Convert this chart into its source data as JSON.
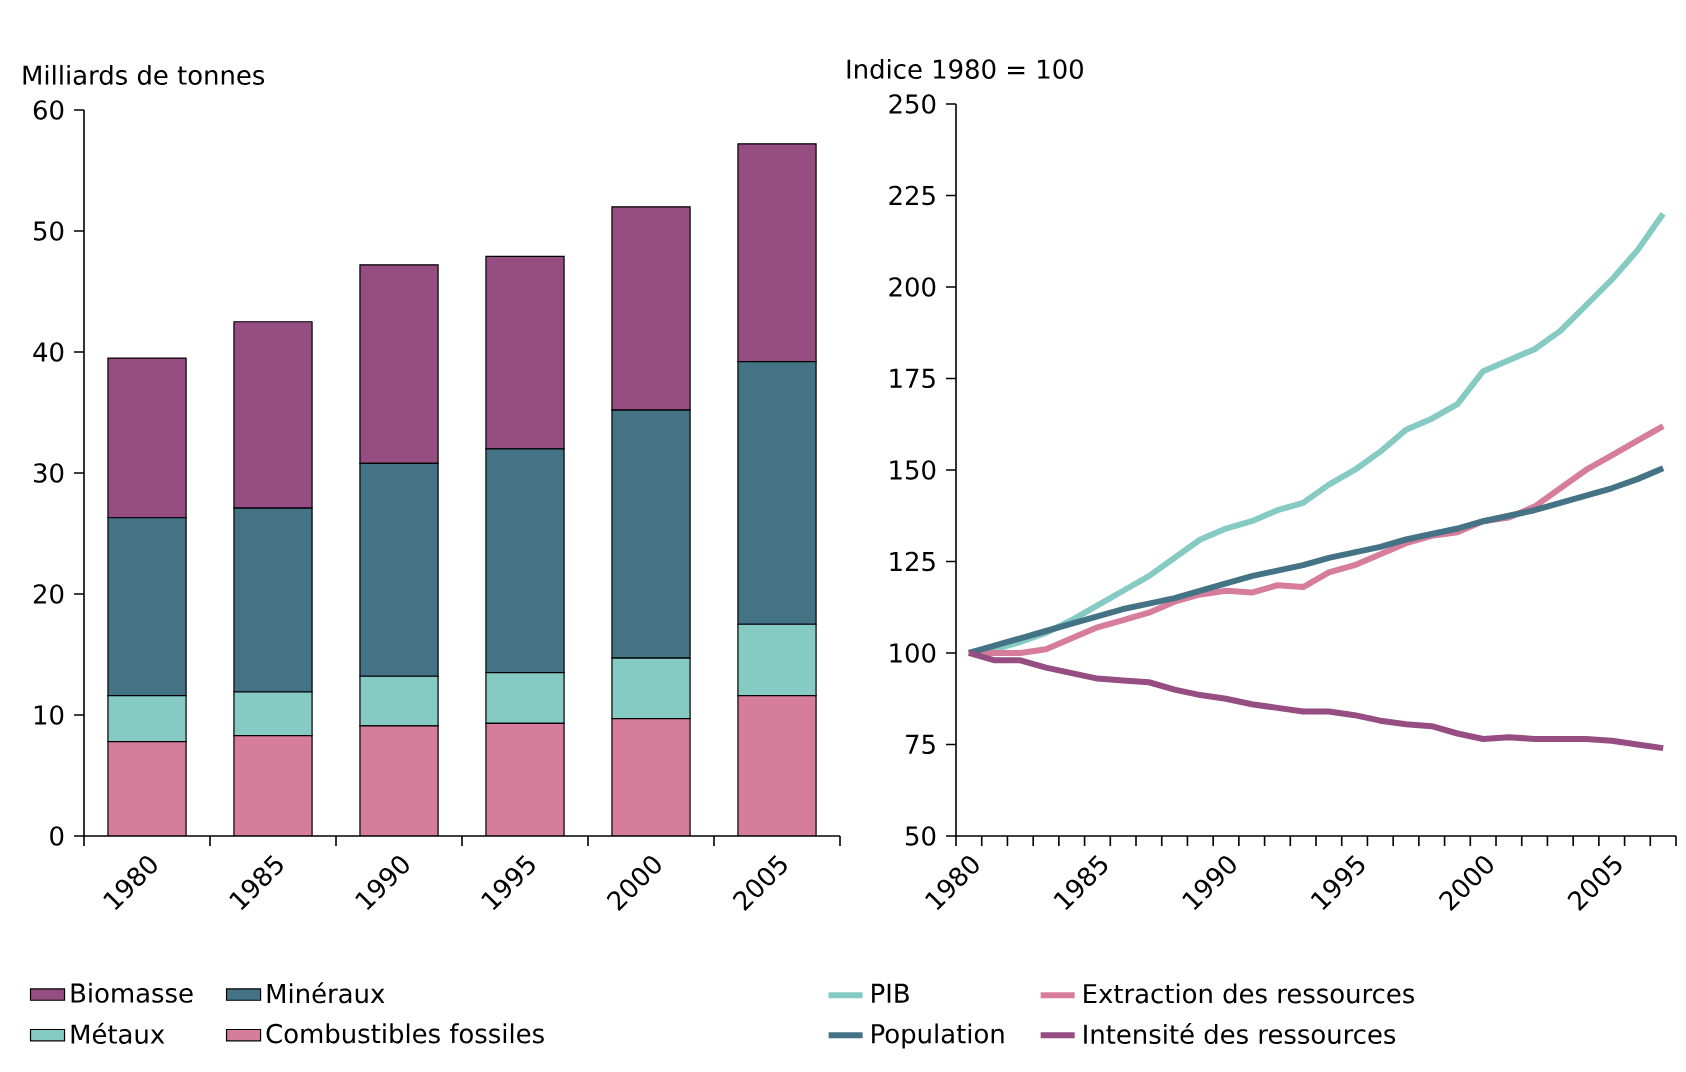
{
  "chart_data": [
    {
      "type": "bar",
      "stacked": true,
      "ylabel": "Milliards de tonnes",
      "categories": [
        "1980",
        "1985",
        "1990",
        "1995",
        "2000",
        "2005"
      ],
      "series": [
        {
          "name": "Combustibles fossiles",
          "color": "#d67d9b",
          "values": [
            7.8,
            8.3,
            9.1,
            9.3,
            9.7,
            11.6
          ]
        },
        {
          "name": "Métaux",
          "color": "#86cac4",
          "values": [
            3.8,
            3.6,
            4.1,
            4.2,
            5.0,
            5.9
          ]
        },
        {
          "name": "Minéraux",
          "color": "#457386",
          "values": [
            14.7,
            15.2,
            17.6,
            18.5,
            20.5,
            21.7
          ]
        },
        {
          "name": "Biomasse",
          "color": "#954d82",
          "values": [
            13.2,
            15.4,
            16.4,
            15.9,
            16.8,
            18.0
          ]
        }
      ],
      "ylim": [
        0,
        60
      ],
      "yticks": [
        0,
        10,
        20,
        30,
        40,
        50,
        60
      ],
      "legend": "bottom"
    },
    {
      "type": "line",
      "ylabel": "Indice 1980 = 100",
      "categories": [
        "1980",
        null,
        null,
        null,
        null,
        "1985",
        null,
        null,
        null,
        null,
        "1990",
        null,
        null,
        null,
        null,
        "1995",
        null,
        null,
        null,
        null,
        "2000",
        null,
        null,
        null,
        null,
        "2005",
        null,
        null
      ],
      "series": [
        {
          "name": "PIB",
          "color": "#86cac4",
          "values": [
            100,
            101,
            103,
            105.5,
            109,
            113,
            117,
            121,
            126,
            131,
            134,
            136,
            139,
            141,
            146,
            150,
            155,
            161,
            164,
            168,
            177,
            180,
            183,
            188,
            195,
            202,
            210,
            220
          ]
        },
        {
          "name": "Extraction des ressources",
          "color": "#d67d9b",
          "values": [
            100,
            100,
            100,
            101,
            104,
            107,
            109,
            111,
            114,
            116,
            117,
            116.5,
            118.5,
            118,
            122,
            124,
            127,
            130,
            132,
            133,
            136,
            137,
            140,
            145,
            150,
            154,
            158,
            162
          ]
        },
        {
          "name": "Population",
          "color": "#457386",
          "values": [
            100,
            102,
            104,
            106,
            108,
            110,
            112,
            113.5,
            115,
            117,
            119,
            121,
            122.5,
            124,
            126,
            127.5,
            129,
            131,
            132.5,
            134,
            136,
            137.5,
            139,
            141,
            143,
            145,
            147.5,
            150.5
          ]
        },
        {
          "name": "Intensité des ressources",
          "color": "#954d82",
          "values": [
            100,
            98,
            98,
            96,
            94.5,
            93,
            92.5,
            92,
            90,
            88.5,
            87.5,
            86,
            85,
            84,
            84,
            83,
            81.5,
            80.5,
            80,
            78,
            76.5,
            77,
            76.5,
            76.5,
            76.5,
            76,
            75,
            74
          ]
        }
      ],
      "ylim": [
        50,
        250
      ],
      "yticks": [
        50,
        75,
        100,
        125,
        150,
        175,
        200,
        225,
        250
      ],
      "legend": "bottom"
    }
  ]
}
